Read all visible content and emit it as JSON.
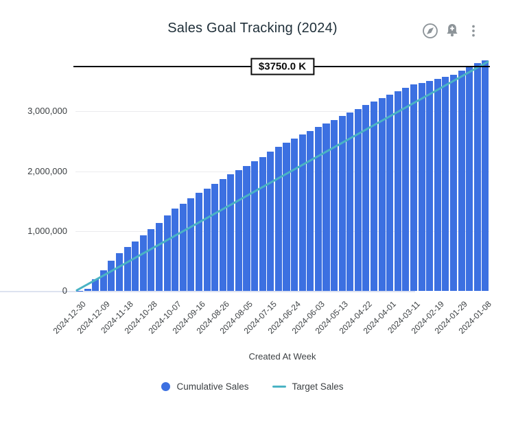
{
  "card": {
    "title": "Sales Goal Tracking (2024)"
  },
  "header_icons": [
    {
      "name": "compass-icon"
    },
    {
      "name": "bell-plus-icon"
    },
    {
      "name": "kebab-menu-icon"
    }
  ],
  "chart_data": {
    "type": "bar",
    "title": "Sales Goal Tracking (2024)",
    "xlabel": "Created At Week",
    "ylabel": "",
    "ylim": [
      0,
      3900000
    ],
    "grid": "horizontal",
    "legend_position": "bottom-center",
    "y_ticks": [
      {
        "value": 0,
        "label": "0"
      },
      {
        "value": 1000000,
        "label": "1,000,000"
      },
      {
        "value": 2000000,
        "label": "2,000,000"
      },
      {
        "value": 3000000,
        "label": "3,000,000"
      }
    ],
    "x_tick_every": 3,
    "x_tick_labels": [
      "2024-12-30",
      "2024-12-09",
      "2024-11-18",
      "2024-10-28",
      "2024-10-07",
      "2024-09-16",
      "2024-08-26",
      "2024-08-05",
      "2024-07-15",
      "2024-06-24",
      "2024-06-03",
      "2024-05-13",
      "2024-04-22",
      "2024-04-01",
      "2024-03-11",
      "2024-02-19",
      "2024-01-29",
      "2024-01-08"
    ],
    "annotation": {
      "label": "$3750.0 K",
      "value": 3750000
    },
    "series": [
      {
        "name": "Cumulative Sales",
        "type": "bar",
        "color": "#3c70e1",
        "values": [
          5000,
          40000,
          195000,
          340000,
          500000,
          635000,
          740000,
          830000,
          930000,
          1035000,
          1135000,
          1260000,
          1375000,
          1460000,
          1545000,
          1635000,
          1715000,
          1795000,
          1875000,
          1945000,
          2020000,
          2090000,
          2170000,
          2240000,
          2330000,
          2410000,
          2480000,
          2545000,
          2610000,
          2675000,
          2740000,
          2800000,
          2860000,
          2925000,
          2985000,
          3045000,
          3105000,
          3165000,
          3225000,
          3285000,
          3340000,
          3395000,
          3450000,
          3480000,
          3510000,
          3540000,
          3575000,
          3615000,
          3680000,
          3740000,
          3805000,
          3860000
        ]
      },
      {
        "name": "Target Sales",
        "type": "line",
        "color": "#4ab3c4",
        "start_value": 10000,
        "end_value": 3830000
      }
    ],
    "legend": [
      {
        "label": "Cumulative Sales",
        "marker": "circle",
        "color": "#3c70e1"
      },
      {
        "label": "Target Sales",
        "marker": "line",
        "color": "#4ab3c4"
      }
    ]
  }
}
